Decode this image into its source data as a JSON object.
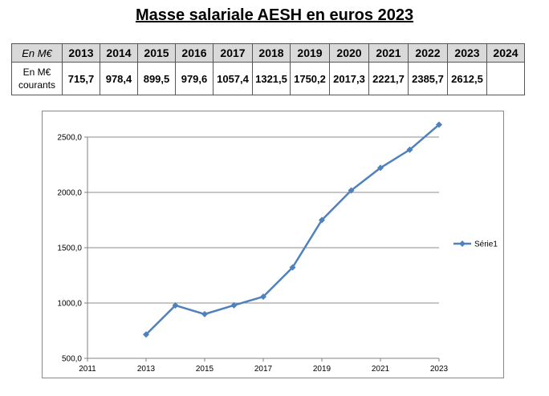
{
  "page": {
    "title": "Masse salariale AESH en euros 2023"
  },
  "table": {
    "corner_label": "En M€",
    "row_label_line1": "En M€",
    "row_label_line2": "courants",
    "years": [
      "2013",
      "2014",
      "2015",
      "2016",
      "2017",
      "2018",
      "2019",
      "2020",
      "2021",
      "2022",
      "2023",
      "2024"
    ],
    "values": [
      "715,7",
      "978,4",
      "899,5",
      "979,6",
      "1057,4",
      "1321,5",
      "1750,2",
      "2017,3",
      "2221,7",
      "2385,7",
      "2612,5",
      ""
    ]
  },
  "chart_data": {
    "type": "line",
    "x": [
      2013,
      2014,
      2015,
      2016,
      2017,
      2018,
      2019,
      2020,
      2021,
      2022,
      2023
    ],
    "series": [
      {
        "name": "Série1",
        "values": [
          715.7,
          978.4,
          899.5,
          979.6,
          1057.4,
          1321.5,
          1750.2,
          2017.3,
          2221.7,
          2385.7,
          2612.5
        ]
      }
    ],
    "xlim": [
      2011,
      2023
    ],
    "ylim": [
      500,
      2500
    ],
    "x_ticks": [
      "2011",
      "2013",
      "2015",
      "2017",
      "2019",
      "2021",
      "2023"
    ],
    "y_ticks": [
      "500,0",
      "1000,0",
      "1500,0",
      "2000,0",
      "2500,0"
    ],
    "grid": "horizontal",
    "legend": "right",
    "series_color": "#4f81bd"
  }
}
